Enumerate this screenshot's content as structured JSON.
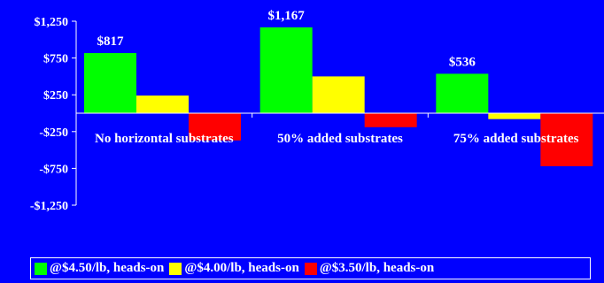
{
  "chart_data": {
    "type": "bar",
    "categories": [
      "No horizontal substrates",
      "50% added substrates",
      "75% added substrates"
    ],
    "series": [
      {
        "name": "@$4.50/lb, heads-on",
        "color": "#00ff00",
        "values": [
          817,
          1167,
          536
        ]
      },
      {
        "name": "@$4.00/lb, heads-on",
        "color": "#ffff00",
        "values": [
          240,
          500,
          -80
        ]
      },
      {
        "name": "@$3.50/lb, heads-on",
        "color": "#ff0000",
        "values": [
          -370,
          -190,
          -720
        ]
      }
    ],
    "data_labels": [
      {
        "series": 0,
        "category": 0,
        "text": "$817"
      },
      {
        "series": 0,
        "category": 1,
        "text": "$1,167"
      },
      {
        "series": 0,
        "category": 2,
        "text": "$536"
      }
    ],
    "yticks": [
      1250,
      750,
      250,
      -250,
      -750,
      -1250
    ],
    "ytick_labels": [
      "$1,250",
      "$750",
      "$250",
      "-$250",
      "-$750",
      "-$1,250"
    ],
    "ylim": [
      -1250,
      1250
    ],
    "grid": false,
    "legend": "bottom",
    "colors": {
      "background": "#0000ff",
      "text": "#ffffff",
      "axis": "#ffffff"
    }
  }
}
